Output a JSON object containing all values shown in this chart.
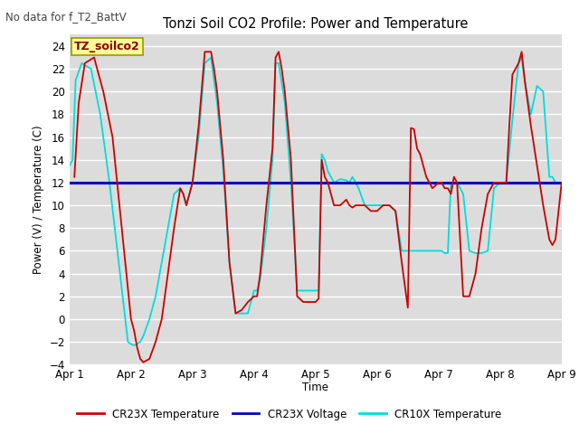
{
  "title": "Tonzi Soil CO2 Profile: Power and Temperature",
  "no_data_label": "No data for f_T2_BattV",
  "ylabel": "Power (V) / Temperature (C)",
  "xlabel": "Time",
  "box_label": "TZ_soilco2",
  "ylim": [
    -4,
    25
  ],
  "yticks": [
    -4,
    -2,
    0,
    2,
    4,
    6,
    8,
    10,
    12,
    14,
    16,
    18,
    20,
    22,
    24
  ],
  "xlim": [
    0,
    8
  ],
  "xtick_labels": [
    "Apr 1",
    "Apr 2",
    "Apr 3",
    "Apr 4",
    "Apr 5",
    "Apr 6",
    "Apr 7",
    "Apr 8",
    "Apr 9"
  ],
  "bg_color": "#dcdcdc",
  "grid_color": "#ffffff",
  "legend_entries": [
    {
      "label": "CR23X Temperature",
      "color": "#cc0000"
    },
    {
      "label": "CR23X Voltage",
      "color": "#0000bb"
    },
    {
      "label": "CR10X Temperature",
      "color": "#00dddd"
    }
  ],
  "voltage_level": 12.0,
  "cr23x_temp_x": [
    0.08,
    0.15,
    0.25,
    0.4,
    0.55,
    0.7,
    0.85,
    1.0,
    1.05,
    1.1,
    1.15,
    1.2,
    1.3,
    1.4,
    1.5,
    1.6,
    1.7,
    1.8,
    1.85,
    1.9,
    1.95,
    2.0,
    2.1,
    2.2,
    2.3,
    2.35,
    2.4,
    2.5,
    2.6,
    2.7,
    2.8,
    2.9,
    3.0,
    3.05,
    3.1,
    3.2,
    3.3,
    3.35,
    3.4,
    3.45,
    3.5,
    3.6,
    3.7,
    3.8,
    3.9,
    4.0,
    4.05,
    4.1,
    4.15,
    4.2,
    4.3,
    4.4,
    4.5,
    4.55,
    4.6,
    4.65,
    4.7,
    4.8,
    4.9,
    5.0,
    5.1,
    5.2,
    5.3,
    5.4,
    5.5,
    5.55,
    5.6,
    5.65,
    5.7,
    5.8,
    5.9,
    6.0,
    6.05,
    6.1,
    6.15,
    6.2,
    6.25,
    6.3,
    6.4,
    6.5,
    6.6,
    6.7,
    6.8,
    6.9,
    7.0,
    7.05,
    7.1,
    7.15,
    7.2,
    7.3,
    7.35,
    7.4,
    7.5,
    7.6,
    7.7,
    7.8,
    7.85,
    7.9,
    8.0
  ],
  "cr23x_temp_y": [
    12.5,
    19,
    22.5,
    23,
    20,
    16,
    8,
    0,
    -1,
    -2.5,
    -3.5,
    -3.8,
    -3.5,
    -2,
    0,
    4,
    8,
    11.5,
    11,
    10,
    11,
    12,
    17,
    23.5,
    23.5,
    22,
    20,
    14,
    5,
    0.5,
    0.8,
    1.5,
    2,
    2,
    4,
    10,
    15,
    23,
    23.5,
    22,
    20,
    14,
    2,
    1.5,
    1.5,
    1.5,
    1.8,
    14,
    12.5,
    12,
    10,
    10,
    10.5,
    10,
    9.8,
    10,
    10,
    10,
    9.5,
    9.5,
    10,
    10,
    9.5,
    5,
    1,
    16.8,
    16.7,
    15,
    14.5,
    12.5,
    11.5,
    12,
    12,
    11.5,
    11.5,
    11,
    12.5,
    12,
    2,
    2,
    4,
    8,
    11,
    12,
    12,
    12,
    12,
    17,
    21.5,
    22.5,
    23.5,
    21,
    17,
    13.5,
    10,
    7,
    6.5,
    7,
    12
  ],
  "cr10x_temp_x": [
    0.0,
    0.05,
    0.1,
    0.2,
    0.35,
    0.5,
    0.65,
    0.8,
    0.95,
    1.0,
    1.05,
    1.1,
    1.15,
    1.2,
    1.3,
    1.4,
    1.5,
    1.6,
    1.7,
    1.8,
    1.85,
    1.9,
    2.0,
    2.1,
    2.2,
    2.3,
    2.35,
    2.4,
    2.5,
    2.6,
    2.7,
    2.8,
    2.9,
    3.0,
    3.05,
    3.1,
    3.2,
    3.3,
    3.35,
    3.4,
    3.5,
    3.6,
    3.7,
    3.8,
    3.9,
    4.0,
    4.05,
    4.1,
    4.15,
    4.2,
    4.3,
    4.4,
    4.5,
    4.55,
    4.6,
    4.65,
    4.7,
    4.8,
    4.9,
    5.0,
    5.1,
    5.2,
    5.3,
    5.4,
    5.5,
    5.6,
    5.7,
    5.8,
    5.9,
    6.0,
    6.05,
    6.1,
    6.15,
    6.2,
    6.25,
    6.3,
    6.4,
    6.5,
    6.6,
    6.7,
    6.8,
    6.9,
    7.0,
    7.05,
    7.1,
    7.2,
    7.3,
    7.35,
    7.4,
    7.5,
    7.6,
    7.7,
    7.8,
    7.85,
    7.9,
    8.0
  ],
  "cr10x_temp_y": [
    13.5,
    14,
    21,
    22.5,
    22,
    18,
    12,
    5,
    -2,
    -2.2,
    -2.3,
    -2.2,
    -2,
    -1.5,
    0,
    2,
    5,
    8,
    11,
    11.5,
    11,
    10,
    12,
    16,
    22.5,
    23,
    21,
    19,
    13,
    5,
    0.5,
    0.5,
    0.5,
    2.5,
    2.5,
    3.5,
    8,
    14,
    22.5,
    22.5,
    19,
    12,
    2.5,
    2.5,
    2.5,
    2.5,
    2.5,
    14.5,
    14,
    13,
    12,
    12.3,
    12.2,
    12,
    12.5,
    12,
    11.5,
    10,
    10,
    10,
    10,
    10,
    9.5,
    6,
    6,
    6,
    6,
    6,
    6,
    6,
    6,
    5.8,
    5.8,
    12,
    12,
    12,
    11,
    6,
    5.8,
    5.8,
    6,
    11.5,
    12,
    12,
    12,
    17.5,
    22.5,
    23,
    21,
    18,
    20.5,
    20,
    12.5,
    12.5,
    12,
    12
  ]
}
